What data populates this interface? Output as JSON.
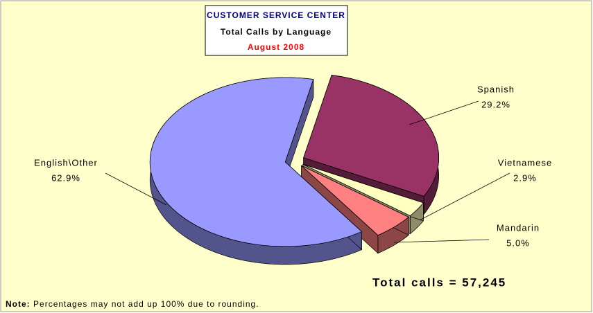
{
  "chart_data": {
    "type": "pie",
    "title": "CUSTOMER SERVICE CENTER",
    "subtitle": "Total Calls by Language",
    "period": "August 2008",
    "categories": [
      "Spanish",
      "Vietnamese",
      "Mandarin",
      "English\\Other"
    ],
    "values": [
      29.2,
      2.9,
      5.0,
      62.9
    ],
    "value_labels": [
      "29.2%",
      "2.9%",
      "5.0%",
      "62.9%"
    ],
    "colors": [
      "#993366",
      "#ffffc0",
      "#ff8080",
      "#9999ff"
    ],
    "annotation": "Total calls = 57,245",
    "note_label": "Note:",
    "note": "Percentages may not add up 100% due to rounding."
  }
}
